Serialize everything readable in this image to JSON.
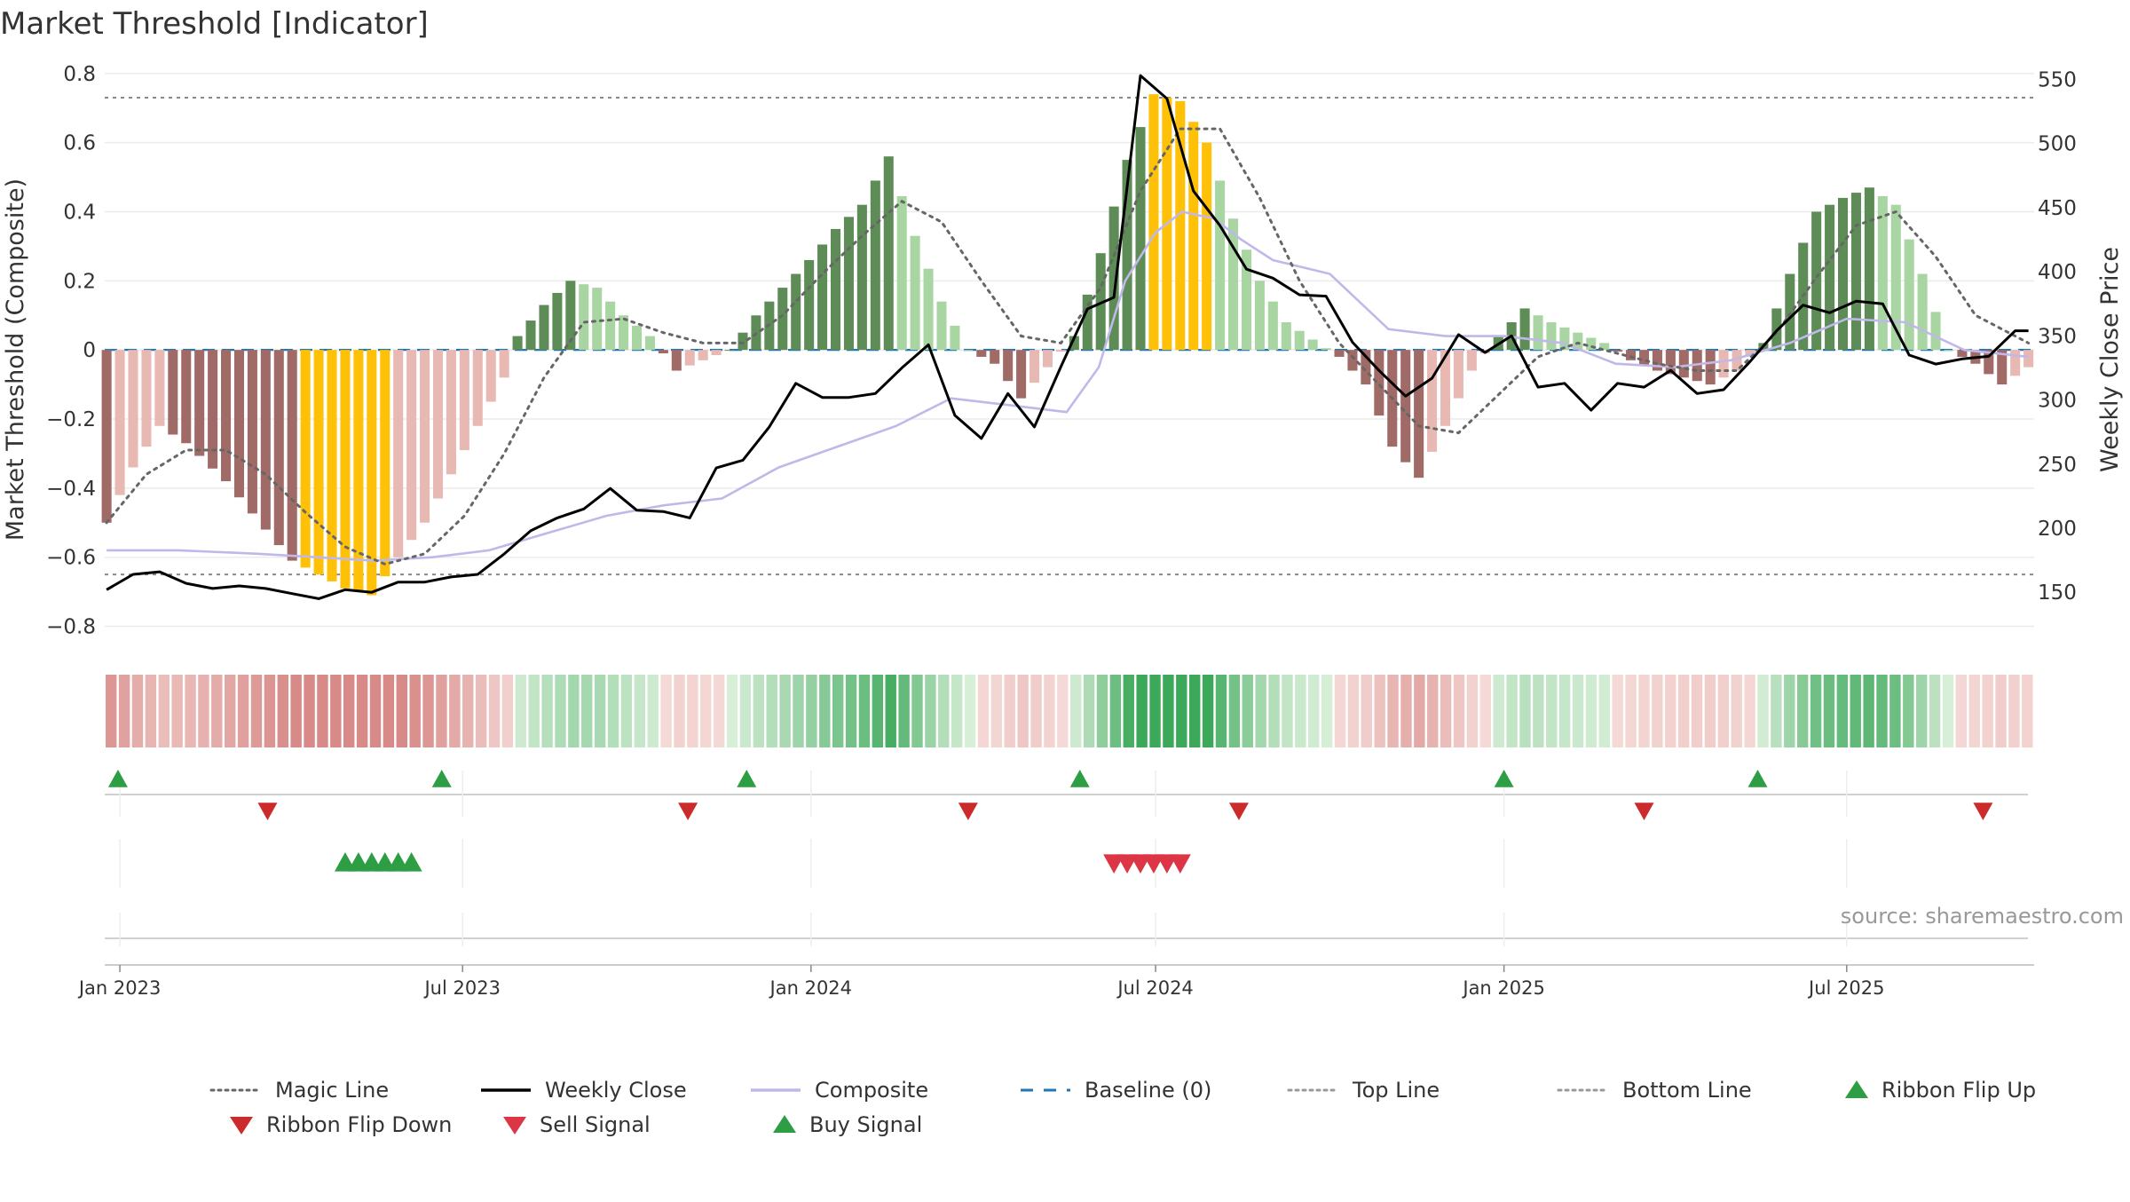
{
  "title": "Market Threshold [Indicator]",
  "source": "source: sharemaestro.com",
  "chart_data": {
    "type": "bar",
    "y_left": {
      "label": "Market Threshold (Composite)",
      "range": [
        -0.85,
        0.82
      ],
      "ticks": [
        0.8,
        0.6,
        0.4,
        0.2,
        0,
        -0.2,
        -0.4,
        -0.6,
        -0.8
      ],
      "tick_labels": [
        "0.8",
        "0.6",
        "0.4",
        "0.2",
        "0",
        "−0.2",
        "−0.4",
        "−0.6",
        "−0.8"
      ]
    },
    "y_right": {
      "label": "Weekly Close Price",
      "range": [
        110,
        560
      ],
      "ticks": [
        550,
        500,
        450,
        400,
        350,
        300,
        250,
        200,
        150
      ],
      "tick_labels": [
        "550",
        "500",
        "450",
        "400",
        "350",
        "300",
        "250",
        "200",
        "150"
      ]
    },
    "x_axis": {
      "start": "2022-12-24",
      "end": "2025-10-08",
      "ticks": [
        {
          "date": "2023-01-01",
          "label": "Jan 2023"
        },
        {
          "date": "2023-07-01",
          "label": "Jul 2023"
        },
        {
          "date": "2024-01-01",
          "label": "Jan 2024"
        },
        {
          "date": "2024-07-01",
          "label": "Jul 2024"
        },
        {
          "date": "2025-01-01",
          "label": "Jan 2025"
        },
        {
          "date": "2025-07-01",
          "label": "Jul 2025"
        }
      ]
    },
    "top_line": 0.73,
    "bottom_line": -0.65,
    "baseline": 0,
    "composite_bars_anchors": [
      [
        "2022-12-25",
        -0.5
      ],
      [
        "2023-01-08",
        -0.34
      ],
      [
        "2023-01-22",
        -0.22
      ],
      [
        "2023-02-05",
        -0.27
      ],
      [
        "2023-02-26",
        -0.38
      ],
      [
        "2023-03-19",
        -0.52
      ],
      [
        "2023-04-02",
        -0.61
      ],
      [
        "2023-04-16",
        -0.65
      ],
      [
        "2023-04-30",
        -0.69
      ],
      [
        "2023-05-14",
        -0.71
      ],
      [
        "2023-05-28",
        -0.6
      ],
      [
        "2023-06-11",
        -0.5
      ],
      [
        "2023-06-25",
        -0.36
      ],
      [
        "2023-07-09",
        -0.22
      ],
      [
        "2023-07-23",
        -0.08
      ],
      [
        "2023-07-30",
        0.04
      ],
      [
        "2023-08-13",
        0.13
      ],
      [
        "2023-08-27",
        0.2
      ],
      [
        "2023-09-10",
        0.18
      ],
      [
        "2023-09-24",
        0.1
      ],
      [
        "2023-10-08",
        0.04
      ],
      [
        "2023-10-22",
        -0.06
      ],
      [
        "2023-11-05",
        -0.03
      ],
      [
        "2023-11-19",
        0.0
      ],
      [
        "2023-12-03",
        0.1
      ],
      [
        "2023-12-17",
        0.18
      ],
      [
        "2023-12-31",
        0.26
      ],
      [
        "2024-01-14",
        0.35
      ],
      [
        "2024-01-28",
        0.42
      ],
      [
        "2024-02-11",
        0.56
      ],
      [
        "2024-02-25",
        0.33
      ],
      [
        "2024-03-10",
        0.14
      ],
      [
        "2024-03-24",
        0.0
      ],
      [
        "2024-04-07",
        -0.04
      ],
      [
        "2024-04-21",
        -0.14
      ],
      [
        "2024-05-05",
        -0.05
      ],
      [
        "2024-05-19",
        0.04
      ],
      [
        "2024-06-02",
        0.28
      ],
      [
        "2024-06-16",
        0.55
      ],
      [
        "2024-06-30",
        0.74
      ],
      [
        "2024-07-14",
        0.72
      ],
      [
        "2024-07-28",
        0.6
      ],
      [
        "2024-08-11",
        0.38
      ],
      [
        "2024-08-25",
        0.2
      ],
      [
        "2024-09-08",
        0.08
      ],
      [
        "2024-09-22",
        0.03
      ],
      [
        "2024-10-06",
        -0.02
      ],
      [
        "2024-10-20",
        -0.1
      ],
      [
        "2024-11-03",
        -0.28
      ],
      [
        "2024-11-17",
        -0.37
      ],
      [
        "2024-12-01",
        -0.22
      ],
      [
        "2024-12-15",
        -0.06
      ],
      [
        "2024-12-29",
        0.04
      ],
      [
        "2025-01-12",
        0.12
      ],
      [
        "2025-01-26",
        0.08
      ],
      [
        "2025-02-09",
        0.05
      ],
      [
        "2025-02-23",
        0.02
      ],
      [
        "2025-03-09",
        -0.03
      ],
      [
        "2025-03-23",
        -0.06
      ],
      [
        "2025-04-06",
        -0.08
      ],
      [
        "2025-04-20",
        -0.1
      ],
      [
        "2025-05-04",
        -0.06
      ],
      [
        "2025-05-18",
        0.02
      ],
      [
        "2025-06-01",
        0.22
      ],
      [
        "2025-06-15",
        0.4
      ],
      [
        "2025-06-29",
        0.44
      ],
      [
        "2025-07-13",
        0.47
      ],
      [
        "2025-07-27",
        0.42
      ],
      [
        "2025-08-10",
        0.22
      ],
      [
        "2025-08-24",
        0.0
      ],
      [
        "2025-09-07",
        -0.04
      ],
      [
        "2025-09-21",
        -0.1
      ],
      [
        "2025-10-05",
        -0.05
      ]
    ],
    "series": [
      {
        "name": "Magic Line",
        "color": "#666666",
        "axis": "left",
        "values": [
          [
            "2022-12-25",
            -0.5
          ],
          [
            "2023-01-15",
            -0.36
          ],
          [
            "2023-02-05",
            -0.29
          ],
          [
            "2023-02-26",
            -0.29
          ],
          [
            "2023-03-19",
            -0.36
          ],
          [
            "2023-04-09",
            -0.47
          ],
          [
            "2023-04-30",
            -0.57
          ],
          [
            "2023-05-21",
            -0.62
          ],
          [
            "2023-06-11",
            -0.59
          ],
          [
            "2023-07-02",
            -0.48
          ],
          [
            "2023-07-23",
            -0.3
          ],
          [
            "2023-08-13",
            -0.08
          ],
          [
            "2023-09-03",
            0.08
          ],
          [
            "2023-09-24",
            0.09
          ],
          [
            "2023-10-15",
            0.05
          ],
          [
            "2023-11-05",
            0.02
          ],
          [
            "2023-11-26",
            0.02
          ],
          [
            "2023-12-17",
            0.1
          ],
          [
            "2024-01-07",
            0.22
          ],
          [
            "2024-01-28",
            0.33
          ],
          [
            "2024-02-18",
            0.43
          ],
          [
            "2024-03-10",
            0.37
          ],
          [
            "2024-03-31",
            0.2
          ],
          [
            "2024-04-21",
            0.04
          ],
          [
            "2024-05-12",
            0.02
          ],
          [
            "2024-06-02",
            0.18
          ],
          [
            "2024-06-23",
            0.46
          ],
          [
            "2024-07-14",
            0.64
          ],
          [
            "2024-08-04",
            0.64
          ],
          [
            "2024-08-25",
            0.44
          ],
          [
            "2024-09-15",
            0.2
          ],
          [
            "2024-10-06",
            0.02
          ],
          [
            "2024-10-27",
            -0.1
          ],
          [
            "2024-11-17",
            -0.22
          ],
          [
            "2024-12-08",
            -0.24
          ],
          [
            "2024-12-29",
            -0.13
          ],
          [
            "2025-01-19",
            -0.02
          ],
          [
            "2025-02-09",
            0.02
          ],
          [
            "2025-03-02",
            -0.01
          ],
          [
            "2025-03-23",
            -0.04
          ],
          [
            "2025-04-13",
            -0.06
          ],
          [
            "2025-05-04",
            -0.06
          ],
          [
            "2025-05-25",
            0.05
          ],
          [
            "2025-06-15",
            0.21
          ],
          [
            "2025-07-06",
            0.36
          ],
          [
            "2025-07-27",
            0.4
          ],
          [
            "2025-08-17",
            0.27
          ],
          [
            "2025-09-07",
            0.1
          ],
          [
            "2025-10-05",
            0.02
          ]
        ]
      },
      {
        "name": "Weekly Close",
        "color": "#000000",
        "axis": "right",
        "values": [
          [
            "2022-12-25",
            152
          ],
          [
            "2023-01-08",
            164
          ],
          [
            "2023-01-22",
            166
          ],
          [
            "2023-02-05",
            157
          ],
          [
            "2023-02-19",
            153
          ],
          [
            "2023-03-05",
            155
          ],
          [
            "2023-03-19",
            153
          ],
          [
            "2023-04-02",
            149
          ],
          [
            "2023-04-16",
            145
          ],
          [
            "2023-04-30",
            152
          ],
          [
            "2023-05-14",
            150
          ],
          [
            "2023-05-28",
            158
          ],
          [
            "2023-06-11",
            158
          ],
          [
            "2023-06-25",
            162
          ],
          [
            "2023-07-09",
            164
          ],
          [
            "2023-07-23",
            180
          ],
          [
            "2023-08-06",
            198
          ],
          [
            "2023-08-20",
            208
          ],
          [
            "2023-09-03",
            215
          ],
          [
            "2023-09-17",
            231
          ],
          [
            "2023-10-01",
            214
          ],
          [
            "2023-10-15",
            213
          ],
          [
            "2023-10-29",
            208
          ],
          [
            "2023-11-12",
            247
          ],
          [
            "2023-11-26",
            253
          ],
          [
            "2023-12-10",
            279
          ],
          [
            "2023-12-24",
            313
          ],
          [
            "2024-01-07",
            302
          ],
          [
            "2024-01-21",
            302
          ],
          [
            "2024-02-04",
            305
          ],
          [
            "2024-02-18",
            325
          ],
          [
            "2024-03-03",
            343
          ],
          [
            "2024-03-17",
            288
          ],
          [
            "2024-03-31",
            270
          ],
          [
            "2024-04-14",
            305
          ],
          [
            "2024-04-28",
            279
          ],
          [
            "2024-05-12",
            326
          ],
          [
            "2024-05-26",
            371
          ],
          [
            "2024-06-09",
            380
          ],
          [
            "2024-06-23",
            553
          ],
          [
            "2024-07-07",
            535
          ],
          [
            "2024-07-21",
            463
          ],
          [
            "2024-08-04",
            436
          ],
          [
            "2024-08-18",
            402
          ],
          [
            "2024-09-01",
            395
          ],
          [
            "2024-09-15",
            382
          ],
          [
            "2024-09-29",
            381
          ],
          [
            "2024-10-13",
            345
          ],
          [
            "2024-10-27",
            323
          ],
          [
            "2024-11-10",
            303
          ],
          [
            "2024-11-24",
            317
          ],
          [
            "2024-12-08",
            351
          ],
          [
            "2024-12-22",
            337
          ],
          [
            "2025-01-05",
            350
          ],
          [
            "2025-01-19",
            310
          ],
          [
            "2025-02-02",
            313
          ],
          [
            "2025-02-16",
            292
          ],
          [
            "2025-03-02",
            313
          ],
          [
            "2025-03-16",
            310
          ],
          [
            "2025-03-30",
            323
          ],
          [
            "2025-04-13",
            305
          ],
          [
            "2025-04-27",
            308
          ],
          [
            "2025-05-11",
            330
          ],
          [
            "2025-05-25",
            354
          ],
          [
            "2025-06-08",
            374
          ],
          [
            "2025-06-22",
            368
          ],
          [
            "2025-07-06",
            377
          ],
          [
            "2025-07-20",
            375
          ],
          [
            "2025-08-03",
            335
          ],
          [
            "2025-08-17",
            328
          ],
          [
            "2025-08-31",
            332
          ],
          [
            "2025-09-14",
            334
          ],
          [
            "2025-09-28",
            354
          ],
          [
            "2025-10-05",
            354
          ]
        ]
      },
      {
        "name": "Composite",
        "color": "#c0b8e8",
        "axis": "left",
        "values": [
          [
            "2022-12-25",
            -0.58
          ],
          [
            "2023-02-01",
            -0.58
          ],
          [
            "2023-03-15",
            -0.59
          ],
          [
            "2023-04-15",
            -0.6
          ],
          [
            "2023-05-15",
            -0.61
          ],
          [
            "2023-06-15",
            -0.6
          ],
          [
            "2023-07-15",
            -0.58
          ],
          [
            "2023-08-15",
            -0.53
          ],
          [
            "2023-09-15",
            -0.48
          ],
          [
            "2023-10-15",
            -0.45
          ],
          [
            "2023-11-15",
            -0.43
          ],
          [
            "2023-12-15",
            -0.34
          ],
          [
            "2024-01-15",
            -0.28
          ],
          [
            "2024-02-15",
            -0.22
          ],
          [
            "2024-03-15",
            -0.14
          ],
          [
            "2024-04-15",
            -0.16
          ],
          [
            "2024-05-15",
            -0.18
          ],
          [
            "2024-06-01",
            -0.05
          ],
          [
            "2024-06-15",
            0.2
          ],
          [
            "2024-07-01",
            0.34
          ],
          [
            "2024-07-15",
            0.4
          ],
          [
            "2024-08-01",
            0.38
          ],
          [
            "2024-08-15",
            0.32
          ],
          [
            "2024-09-01",
            0.26
          ],
          [
            "2024-10-01",
            0.22
          ],
          [
            "2024-11-01",
            0.06
          ],
          [
            "2024-12-01",
            0.04
          ],
          [
            "2025-01-01",
            0.04
          ],
          [
            "2025-02-01",
            0.02
          ],
          [
            "2025-03-01",
            -0.04
          ],
          [
            "2025-04-01",
            -0.05
          ],
          [
            "2025-05-01",
            -0.03
          ],
          [
            "2025-06-01",
            0.02
          ],
          [
            "2025-07-01",
            0.09
          ],
          [
            "2025-08-01",
            0.08
          ],
          [
            "2025-09-01",
            0.0
          ],
          [
            "2025-10-05",
            -0.02
          ]
        ]
      },
      {
        "name": "Baseline (0)",
        "color": "#1f77b4",
        "axis": "left"
      },
      {
        "name": "Top Line",
        "color": "#666666",
        "axis": "left"
      },
      {
        "name": "Bottom Line",
        "color": "#666666",
        "axis": "left"
      }
    ],
    "ribbon_flip_up": [
      "2022-12-31",
      "2023-06-20",
      "2023-11-28",
      "2024-05-22",
      "2025-01-01",
      "2025-05-15"
    ],
    "ribbon_flip_down": [
      "2023-03-20",
      "2023-10-28",
      "2024-03-24",
      "2024-08-14",
      "2025-03-16",
      "2025-09-11"
    ],
    "buy_signals": [
      "2023-04-30",
      "2023-05-07",
      "2023-05-14",
      "2023-05-21",
      "2023-05-28",
      "2023-06-04"
    ],
    "sell_signals": [
      "2024-06-09",
      "2024-06-16",
      "2024-06-23",
      "2024-06-30",
      "2024-07-07",
      "2024-07-14"
    ],
    "legend_position": "bottom",
    "legend": [
      {
        "label": "Magic Line",
        "kind": "dotted-line",
        "color": "#666666"
      },
      {
        "label": "Weekly Close",
        "kind": "solid-line",
        "color": "#000000"
      },
      {
        "label": "Composite",
        "kind": "solid-line",
        "color": "#c0b8e8"
      },
      {
        "label": "Baseline (0)",
        "kind": "dashed-line",
        "color": "#1f77b4"
      },
      {
        "label": "Top Line",
        "kind": "dotted-line",
        "color": "#999999"
      },
      {
        "label": "Bottom Line",
        "kind": "dotted-line",
        "color": "#999999"
      },
      {
        "label": "Ribbon Flip Up",
        "kind": "triangle-up",
        "color": "#2e9e44"
      },
      {
        "label": "Ribbon Flip Down",
        "kind": "triangle-down",
        "color": "#cc2b2b"
      },
      {
        "label": "Sell Signal",
        "kind": "triangle-down",
        "color": "#dc3545"
      },
      {
        "label": "Buy Signal",
        "kind": "triangle-up",
        "color": "#2e9e44"
      }
    ],
    "colors": {
      "highlight_bar": "#ffc107",
      "strong_up": "#5d8c57",
      "weak_up": "#a8d5a2",
      "strong_down": "#a06a66",
      "weak_down": "#e8b9b3"
    }
  }
}
